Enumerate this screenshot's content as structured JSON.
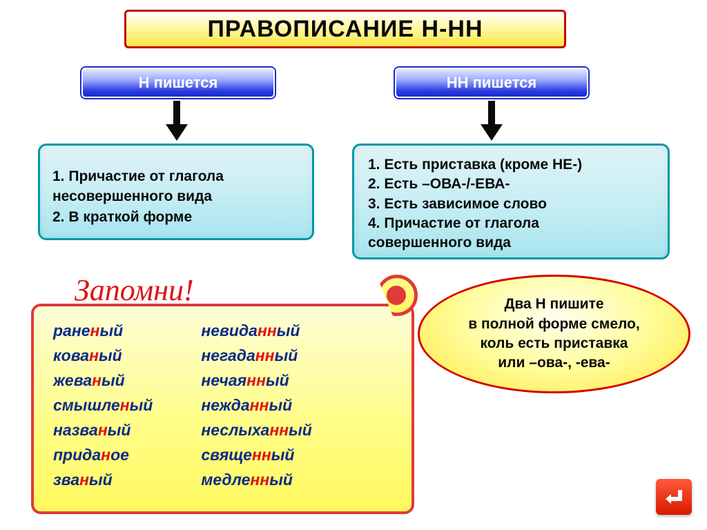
{
  "title": "ПРАВОПИСАНИЕ Н-НН",
  "left_header": "Н пишется",
  "right_header": "НН пишется",
  "left_rules": [
    "1.  Причастие от глагола",
    "  несовершенного вида",
    "2. В краткой форме"
  ],
  "right_rules": [
    "1.  Есть приставка (кроме НЕ-)",
    "2.  Есть –ОВА-/-ЕВА-",
    "3.  Есть зависимое слово",
    "4.  Причастие от глагола",
    "совершенного вида"
  ],
  "remember": "Запомни!",
  "words_left": [
    {
      "pre": "ране",
      "hl": "н",
      "post": "ый"
    },
    {
      "pre": "кова",
      "hl": "н",
      "post": "ый"
    },
    {
      "pre": "жева",
      "hl": "н",
      "post": "ый"
    },
    {
      "pre": "смышле",
      "hl": "н",
      "post": "ый"
    },
    {
      "pre": "назва",
      "hl": "н",
      "post": "ый"
    },
    {
      "pre": "прида",
      "hl": "н",
      "post": "ое"
    },
    {
      "pre": "зва",
      "hl": "н",
      "post": "ый"
    }
  ],
  "words_right": [
    {
      "pre": "невида",
      "hl": "нн",
      "post": "ый"
    },
    {
      "pre": "негада",
      "hl": "нн",
      "post": "ый"
    },
    {
      "pre": "нечая",
      "hl": "нн",
      "post": "ый"
    },
    {
      "pre": "нежда",
      "hl": "нн",
      "post": "ый"
    },
    {
      "pre": "неслыха",
      "hl": "нн",
      "post": "ый"
    },
    {
      "pre": "свяще",
      "hl": "нн",
      "post": "ый"
    },
    {
      "pre": "медле",
      "hl": "нн",
      "post": "ый"
    }
  ],
  "bubble": "Два Н пишите\nв полной форме смело,\nколь есть приставка\nили –ова-, -ева-",
  "colors": {
    "title_border": "#c00000",
    "header_blue": "#1a2bcc",
    "rulebox_border": "#0097a7",
    "highlight_red": "#de1414",
    "word_blue": "#0a2a8a",
    "scroll_border": "#e03a3a",
    "nav_bg": "#d61a00"
  }
}
